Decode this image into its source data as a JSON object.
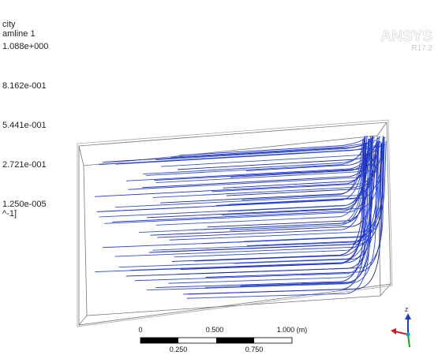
{
  "legend": {
    "title": "city",
    "subtitle": "amline 1",
    "levels": [
      "1.088e+000",
      "8.162e-001",
      "5.441e-001",
      "2.721e-001",
      "1.250e-005"
    ],
    "unit": "^-1]"
  },
  "logo": {
    "brand": "ANSYS",
    "version": "R17.2"
  },
  "scale_bar": {
    "top_labels": [
      "0",
      "0.500",
      "1.000 (m)"
    ],
    "bottom_labels": [
      "0.250",
      "0.750"
    ]
  },
  "triad": {
    "axis": "z"
  }
}
